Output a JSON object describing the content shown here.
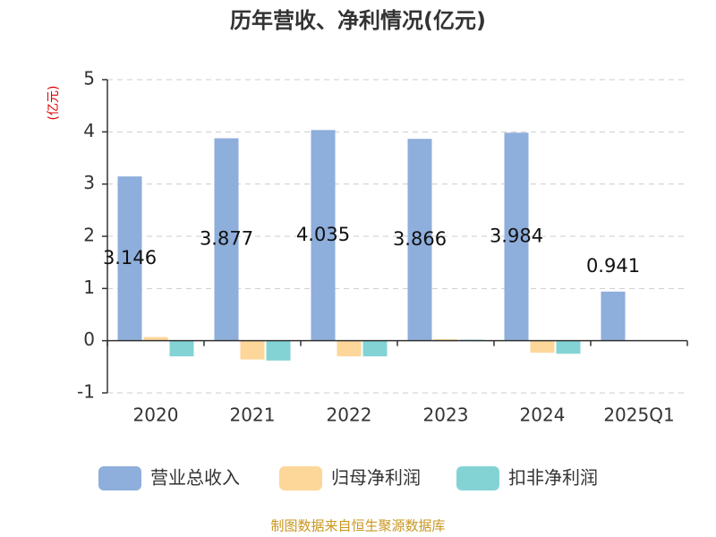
{
  "chart_data": {
    "type": "bar",
    "title": "历年营收、净利情况(亿元)",
    "y_label": "(亿元)",
    "categories": [
      "2020",
      "2021",
      "2022",
      "2023",
      "2024",
      "2025Q1"
    ],
    "series": [
      {
        "name": "营业总收入",
        "color": "#8eaedb",
        "values": [
          3.146,
          3.877,
          4.035,
          3.866,
          3.984,
          0.941
        ],
        "show_labels": true
      },
      {
        "name": "归母净利润",
        "color": "#fdd699",
        "values": [
          0.07,
          -0.36,
          -0.3,
          0.03,
          -0.23,
          0.01
        ],
        "show_labels": false
      },
      {
        "name": "扣非净利润",
        "color": "#83d3d5",
        "values": [
          -0.3,
          -0.38,
          -0.3,
          0.02,
          -0.25,
          0.01
        ],
        "show_labels": false
      }
    ],
    "ylim": [
      -1,
      5
    ],
    "yticks": [
      -1,
      0,
      1,
      2,
      3,
      4,
      5
    ],
    "grid": true,
    "source": "制图数据来自恒生聚源数据库"
  }
}
